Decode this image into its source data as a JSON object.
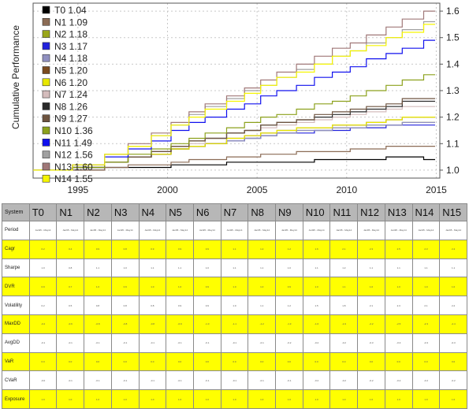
{
  "chart_data": {
    "type": "line",
    "ylabel": "Cumulative Performance",
    "xlabel": "",
    "xlim": [
      1992.5,
      2015.2
    ],
    "ylim": [
      0.97,
      1.63
    ],
    "xticks": [
      1995,
      2000,
      2005,
      2010,
      2015
    ],
    "yticks": [
      1.0,
      1.1,
      1.2,
      1.3,
      1.4,
      1.5,
      1.6
    ],
    "grid": true,
    "legend": "top-left",
    "x": [
      1992.5,
      1994.7,
      1996.5,
      1997.8,
      1999.1,
      2000.2,
      2001.2,
      2002.1,
      2003.3,
      2004.3,
      2005.2,
      2006.1,
      2007.2,
      2008.2,
      2009.2,
      2010.2,
      2011.1,
      2012.2,
      2013.1,
      2014.3
    ],
    "series": [
      {
        "name": "T0 1.04",
        "color": "#000000",
        "values": [
          1.0,
          1.0,
          1.01,
          1.01,
          1.01,
          1.02,
          1.02,
          1.02,
          1.03,
          1.03,
          1.03,
          1.03,
          1.03,
          1.04,
          1.04,
          1.04,
          1.04,
          1.05,
          1.05,
          1.04
        ]
      },
      {
        "name": "N1 1.09",
        "color": "#8b6b55",
        "values": [
          1.0,
          1.0,
          1.01,
          1.02,
          1.02,
          1.03,
          1.04,
          1.04,
          1.05,
          1.05,
          1.06,
          1.06,
          1.07,
          1.07,
          1.07,
          1.08,
          1.08,
          1.09,
          1.09,
          1.09
        ]
      },
      {
        "name": "N2 1.18",
        "color": "#9aa619",
        "values": [
          1.0,
          1.01,
          1.03,
          1.05,
          1.06,
          1.08,
          1.09,
          1.1,
          1.11,
          1.12,
          1.13,
          1.14,
          1.15,
          1.15,
          1.16,
          1.16,
          1.17,
          1.17,
          1.18,
          1.18
        ]
      },
      {
        "name": "N3 1.17",
        "color": "#2222dd",
        "values": [
          1.0,
          1.01,
          1.03,
          1.05,
          1.06,
          1.08,
          1.09,
          1.1,
          1.11,
          1.12,
          1.13,
          1.14,
          1.14,
          1.15,
          1.15,
          1.16,
          1.16,
          1.17,
          1.17,
          1.17
        ]
      },
      {
        "name": "N4 1.18",
        "color": "#9090c0",
        "values": [
          1.0,
          1.01,
          1.03,
          1.05,
          1.06,
          1.08,
          1.09,
          1.1,
          1.11,
          1.12,
          1.13,
          1.14,
          1.15,
          1.15,
          1.16,
          1.16,
          1.17,
          1.17,
          1.18,
          1.18
        ]
      },
      {
        "name": "N5 1.20",
        "color": "#7a4a1e",
        "values": [
          1.0,
          1.01,
          1.03,
          1.05,
          1.06,
          1.08,
          1.09,
          1.1,
          1.12,
          1.13,
          1.14,
          1.15,
          1.16,
          1.16,
          1.17,
          1.17,
          1.18,
          1.19,
          1.2,
          1.2
        ]
      },
      {
        "name": "N6 1.20",
        "color": "#e8e800",
        "values": [
          1.0,
          1.01,
          1.03,
          1.05,
          1.06,
          1.08,
          1.09,
          1.1,
          1.12,
          1.13,
          1.14,
          1.15,
          1.16,
          1.16,
          1.17,
          1.17,
          1.18,
          1.19,
          1.2,
          1.2
        ]
      },
      {
        "name": "N7 1.24",
        "color": "#d4bcbc",
        "values": [
          1.0,
          1.01,
          1.03,
          1.05,
          1.07,
          1.09,
          1.1,
          1.12,
          1.14,
          1.15,
          1.16,
          1.17,
          1.18,
          1.19,
          1.2,
          1.21,
          1.22,
          1.23,
          1.24,
          1.24
        ]
      },
      {
        "name": "N8 1.26",
        "color": "#2a2a2a",
        "values": [
          1.0,
          1.01,
          1.03,
          1.05,
          1.07,
          1.09,
          1.11,
          1.12,
          1.14,
          1.15,
          1.17,
          1.18,
          1.19,
          1.2,
          1.21,
          1.22,
          1.23,
          1.24,
          1.26,
          1.26
        ]
      },
      {
        "name": "N9 1.27",
        "color": "#6e5440",
        "values": [
          1.0,
          1.01,
          1.03,
          1.05,
          1.07,
          1.09,
          1.11,
          1.12,
          1.14,
          1.15,
          1.17,
          1.18,
          1.19,
          1.21,
          1.22,
          1.23,
          1.24,
          1.25,
          1.27,
          1.27
        ]
      },
      {
        "name": "N10 1.36",
        "color": "#8ca11c",
        "values": [
          1.0,
          1.01,
          1.03,
          1.06,
          1.08,
          1.1,
          1.12,
          1.14,
          1.16,
          1.18,
          1.2,
          1.21,
          1.23,
          1.25,
          1.26,
          1.28,
          1.3,
          1.32,
          1.34,
          1.36
        ]
      },
      {
        "name": "N11 1.49",
        "color": "#1010ee",
        "values": [
          1.0,
          1.02,
          1.05,
          1.08,
          1.11,
          1.15,
          1.18,
          1.2,
          1.23,
          1.25,
          1.28,
          1.3,
          1.32,
          1.35,
          1.37,
          1.39,
          1.42,
          1.44,
          1.46,
          1.49
        ]
      },
      {
        "name": "N12 1.56",
        "color": "#a0a0a0",
        "values": [
          1.0,
          1.02,
          1.06,
          1.09,
          1.13,
          1.17,
          1.21,
          1.24,
          1.27,
          1.3,
          1.32,
          1.35,
          1.38,
          1.4,
          1.43,
          1.45,
          1.48,
          1.5,
          1.53,
          1.56
        ]
      },
      {
        "name": "N13 1.60",
        "color": "#a07878",
        "values": [
          1.0,
          1.02,
          1.06,
          1.1,
          1.14,
          1.18,
          1.22,
          1.25,
          1.28,
          1.31,
          1.34,
          1.37,
          1.4,
          1.43,
          1.46,
          1.48,
          1.51,
          1.54,
          1.57,
          1.6
        ]
      },
      {
        "name": "N14 1.55",
        "color": "#f5f500",
        "values": [
          1.0,
          1.02,
          1.06,
          1.09,
          1.13,
          1.17,
          1.2,
          1.23,
          1.26,
          1.29,
          1.32,
          1.35,
          1.37,
          1.4,
          1.43,
          1.45,
          1.47,
          1.5,
          1.52,
          1.55
        ]
      }
    ]
  },
  "table": {
    "corner": "System",
    "columns": [
      "T0",
      "N1",
      "N2",
      "N3",
      "N4",
      "N5",
      "N6",
      "N7",
      "N8",
      "N9",
      "N10",
      "N11",
      "N12",
      "N13",
      "N14",
      "N15"
    ],
    "rows": [
      {
        "label": "Period",
        "values": [
          "Jan95 - May14",
          "Jan95 - May14",
          "Jan95 - May14",
          "Jan95 - May14",
          "Jan95 - May14",
          "Jan95 - May14",
          "Jan95 - May14",
          "Jan95 - May14",
          "Jan95 - May14",
          "Jan95 - May14",
          "Jan95 - May14",
          "Jan95 - May14",
          "Jan95 - May14",
          "Jan95 - May14",
          "Jan95 - May14",
          "Jan95 - May14"
        ]
      },
      {
        "label": "Cagr",
        "values": [
          "0.2",
          "0.4",
          "0.9",
          "0.8",
          "0.9",
          "0.9",
          "0.9",
          "1.1",
          "1.2",
          "1.2",
          "1.6",
          "2.1",
          "2.3",
          "2.5",
          "2.3",
          "2.4"
        ]
      },
      {
        "label": "Sharpe",
        "values": [
          "1.0",
          "0.8",
          "1.1",
          "1.0",
          "1.1",
          "1.1",
          "1.0",
          "1.1",
          "1.1",
          "1.0",
          "1.1",
          "1.2",
          "1.1",
          "1.1",
          "1.1",
          "1.1"
        ]
      },
      {
        "label": "DVR",
        "values": [
          "0.9",
          "0.7",
          "1.0",
          "0.9",
          "1.0",
          "1.0",
          "0.9",
          "1.0",
          "1.0",
          "0.9",
          "1.0",
          "1.1",
          "1.0",
          "1.0",
          "1.0",
          "1.0"
        ]
      },
      {
        "label": "Volatility",
        "values": [
          "0.2",
          "0.5",
          "0.8",
          "0.8",
          "0.8",
          "0.9",
          "0.9",
          "1.0",
          "1.1",
          "1.2",
          "1.5",
          "1.8",
          "2.1",
          "2.3",
          "2.1",
          "2.2"
        ]
      },
      {
        "label": "MaxDD",
        "values": [
          "-0.2",
          "-0.6",
          "-0.8",
          "-0.8",
          "-0.8",
          "-0.9",
          "-1.0",
          "-1.1",
          "-1.2",
          "-1.3",
          "-1.6",
          "-1.9",
          "-2.2",
          "-2.5",
          "-2.3",
          "-2.4"
        ]
      },
      {
        "label": "AvgDD",
        "values": [
          "-0.1",
          "-0.1",
          "-0.1",
          "-0.1",
          "-0.1",
          "-0.1",
          "-0.1",
          "-0.1",
          "-0.1",
          "-0.2",
          "-0.2",
          "-0.2",
          "-0.3",
          "-0.3",
          "-0.3",
          "-0.3"
        ]
      },
      {
        "label": "VaR",
        "values": [
          "0.0",
          "0.0",
          "0.0",
          "0.0",
          "0.0",
          "0.0",
          "0.0",
          "0.0",
          "0.0",
          "0.0",
          "0.0",
          "0.0",
          "0.0",
          "0.0",
          "0.0",
          "0.0"
        ]
      },
      {
        "label": "CVaR",
        "values": [
          "-0.0",
          "-0.1",
          "-0.1",
          "-0.1",
          "-0.1",
          "-0.1",
          "-0.1",
          "-0.1",
          "-0.1",
          "-0.1",
          "-0.2",
          "-0.2",
          "-0.2",
          "-0.2",
          "-0.2",
          "-0.2"
        ]
      },
      {
        "label": "Exposure",
        "values": [
          "1.0",
          "1.0",
          "1.0",
          "1.0",
          "1.0",
          "1.0",
          "1.0",
          "1.0",
          "1.0",
          "1.0",
          "1.0",
          "1.0",
          "1.0",
          "1.0",
          "1.0",
          "1.0"
        ]
      }
    ]
  }
}
